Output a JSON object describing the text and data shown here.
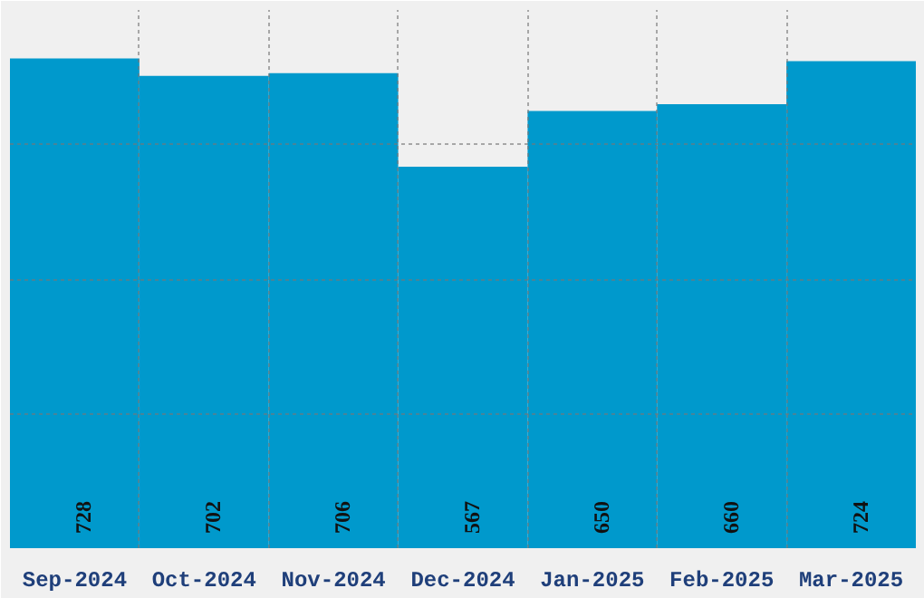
{
  "chart_data": {
    "type": "bar",
    "categories": [
      "Sep-2024",
      "Oct-2024",
      "Nov-2024",
      "Dec-2024",
      "Jan-2025",
      "Feb-2025",
      "Mar-2025"
    ],
    "values": [
      728,
      702,
      706,
      567,
      650,
      660,
      724
    ],
    "color": "#0099cc",
    "ylim": [
      0,
      800
    ],
    "yticks": [
      {
        "value": 0,
        "label": null
      },
      {
        "value": 200,
        "label": null
      },
      {
        "value": 400,
        "label": null
      },
      {
        "value": 600,
        "label": null
      },
      {
        "value": 800,
        "label": null
      }
    ],
    "tick_labels": "x",
    "grid": true,
    "data_labels": true
  }
}
